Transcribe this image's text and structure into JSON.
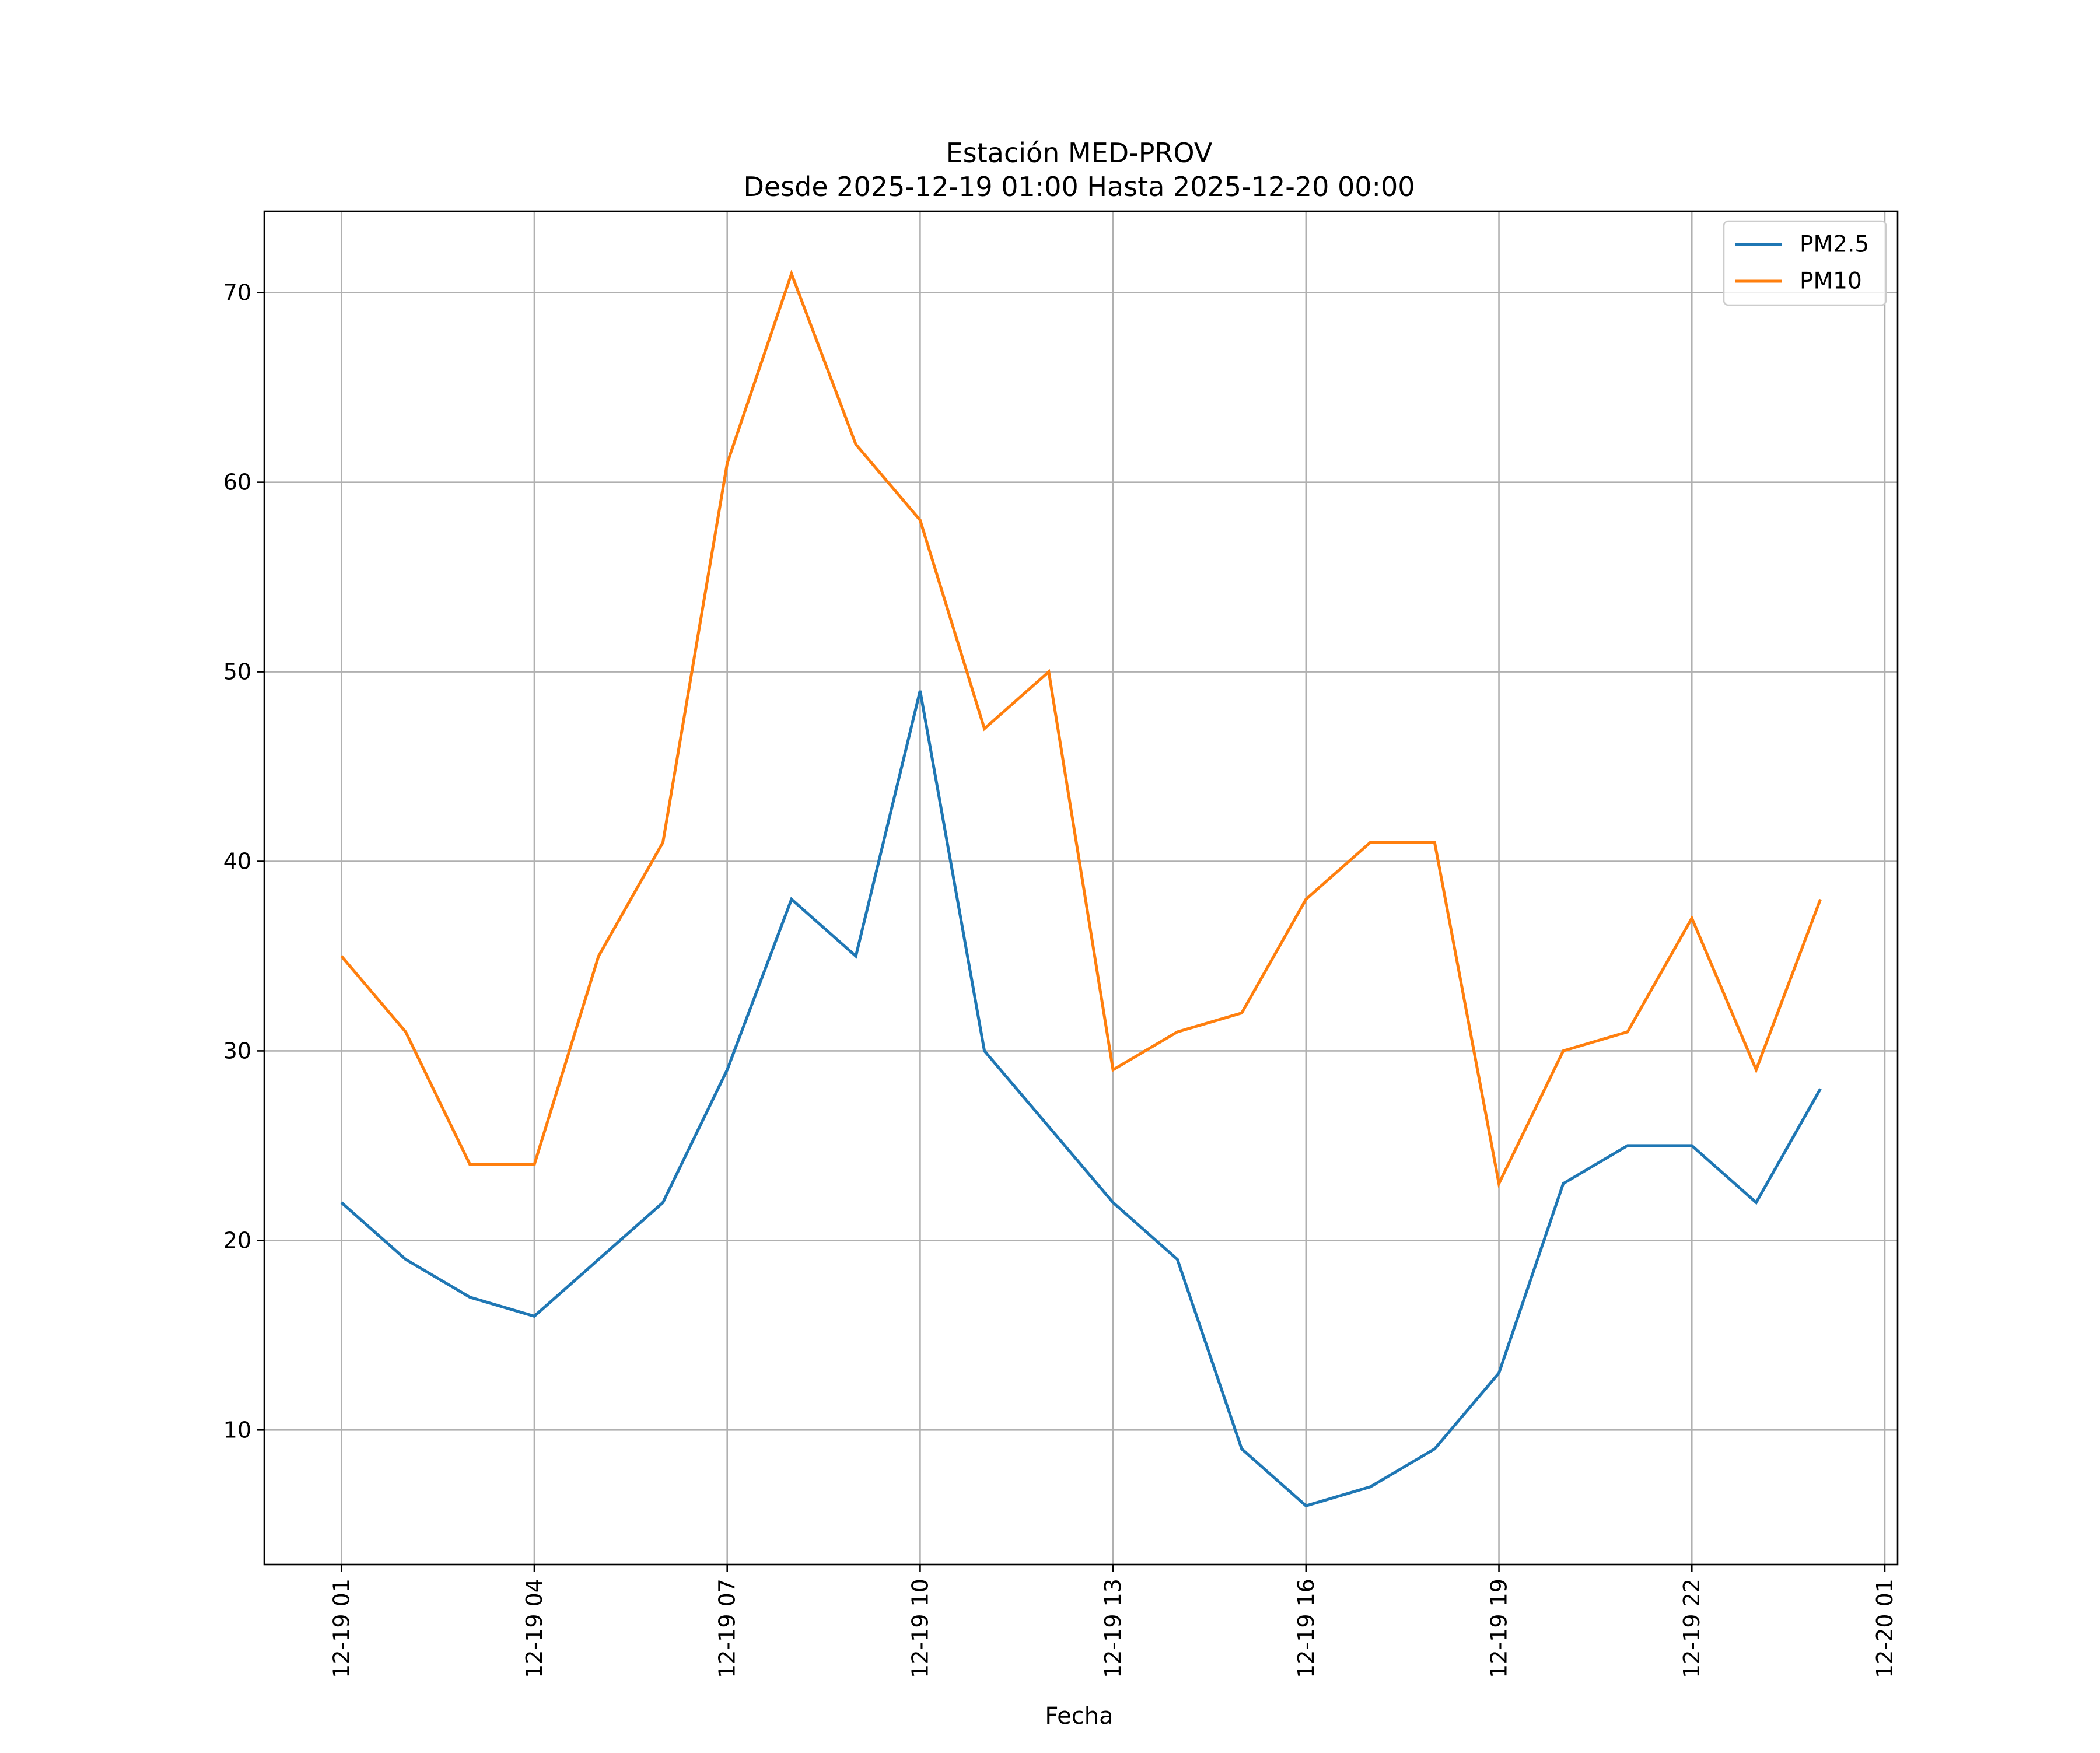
{
  "chart_data": {
    "type": "line",
    "title": "Estación MED-PROV",
    "subtitle": "Desde 2025-12-19 01:00 Hasta 2025-12-20 00:00",
    "xlabel": "Fecha",
    "ylabel": "",
    "x_hours": [
      1,
      2,
      3,
      4,
      5,
      6,
      7,
      8,
      9,
      10,
      11,
      12,
      13,
      14,
      15,
      16,
      17,
      18,
      19,
      20,
      21,
      22,
      23,
      24
    ],
    "xlim_hours": [
      -0.2,
      25.2
    ],
    "ylim": [
      2.9,
      74.3
    ],
    "x_ticks": [
      {
        "hour": 1,
        "label": "12-19 01"
      },
      {
        "hour": 4,
        "label": "12-19 04"
      },
      {
        "hour": 7,
        "label": "12-19 07"
      },
      {
        "hour": 10,
        "label": "12-19 10"
      },
      {
        "hour": 13,
        "label": "12-19 13"
      },
      {
        "hour": 16,
        "label": "12-19 16"
      },
      {
        "hour": 19,
        "label": "12-19 19"
      },
      {
        "hour": 22,
        "label": "12-19 22"
      },
      {
        "hour": 25,
        "label": "12-20 01"
      }
    ],
    "y_ticks": [
      {
        "value": 10,
        "label": "10"
      },
      {
        "value": 20,
        "label": "20"
      },
      {
        "value": 30,
        "label": "30"
      },
      {
        "value": 40,
        "label": "40"
      },
      {
        "value": 50,
        "label": "50"
      },
      {
        "value": 60,
        "label": "60"
      },
      {
        "value": 70,
        "label": "70"
      }
    ],
    "grid": true,
    "legend_position": "top-right",
    "series": [
      {
        "name": "PM2.5",
        "color": "#1f77b4",
        "values": [
          22,
          19,
          17,
          16,
          19,
          22,
          29,
          38,
          35,
          49,
          30,
          26,
          22,
          19,
          9,
          6,
          7,
          9,
          13,
          23,
          25,
          25,
          22,
          28
        ]
      },
      {
        "name": "PM10",
        "color": "#ff7f0e",
        "values": [
          35,
          31,
          24,
          24,
          35,
          41,
          61,
          71,
          62,
          58,
          47,
          50,
          29,
          31,
          32,
          38,
          41,
          41,
          23,
          30,
          31,
          37,
          29,
          38
        ]
      }
    ]
  }
}
